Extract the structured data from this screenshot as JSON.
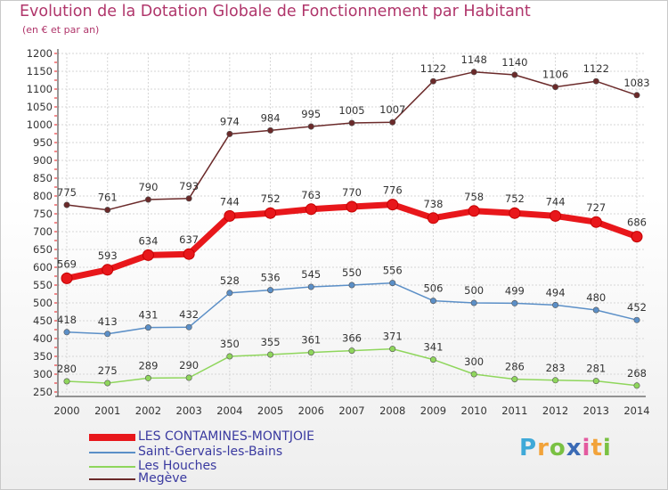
{
  "title": "Evolution de la Dotation Globale de Fonctionnement par Habitant",
  "subtitle": "(en € et par an)",
  "logo": {
    "letters": [
      "P",
      "r",
      "o",
      "x",
      "i",
      "t",
      "i"
    ],
    "colors": [
      "#3fa9d8",
      "#f2a33a",
      "#7ac143",
      "#3b6bb5",
      "#e35a9f",
      "#f2a33a",
      "#7ac143"
    ]
  },
  "chart_data": {
    "type": "line",
    "title": "Evolution de la Dotation Globale de Fonctionnement par Habitant",
    "subtitle": "(en € et par an)",
    "x": [
      "2000",
      "2001",
      "2002",
      "2003",
      "2004",
      "2005",
      "2006",
      "2007",
      "2008",
      "2009",
      "2010",
      "2011",
      "2012",
      "2013",
      "2014"
    ],
    "ylim": [
      250,
      1200
    ],
    "yticks": [
      250,
      300,
      350,
      400,
      450,
      500,
      550,
      600,
      650,
      700,
      750,
      800,
      850,
      900,
      950,
      1000,
      1050,
      1100,
      1150,
      1200
    ],
    "grid": true,
    "legend_position": "bottom-left",
    "series": [
      {
        "name": "LES CONTAMINES-MONTJOIE",
        "color": "#e8171b",
        "emphasis": true,
        "values": [
          569,
          593,
          634,
          637,
          744,
          752,
          763,
          770,
          776,
          738,
          758,
          752,
          744,
          727,
          686
        ]
      },
      {
        "name": "Saint-Gervais-les-Bains",
        "color": "#5b8fc7",
        "values": [
          418,
          413,
          431,
          432,
          528,
          536,
          545,
          550,
          556,
          506,
          500,
          499,
          494,
          480,
          452
        ]
      },
      {
        "name": "Les Houches",
        "color": "#8fd65c",
        "values": [
          280,
          275,
          289,
          290,
          350,
          355,
          361,
          366,
          371,
          341,
          300,
          286,
          283,
          281,
          268
        ]
      },
      {
        "name": "Megève",
        "color": "#6b2a2a",
        "values": [
          775,
          761,
          790,
          793,
          974,
          984,
          995,
          1005,
          1007,
          1122,
          1148,
          1140,
          1106,
          1122,
          1083
        ]
      }
    ]
  }
}
